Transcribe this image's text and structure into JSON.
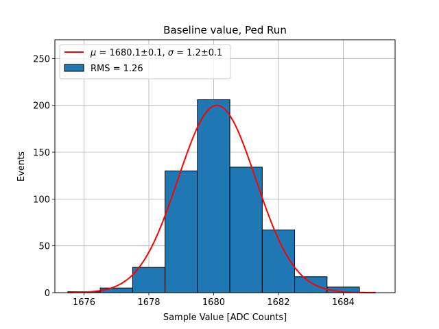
{
  "chart_data": {
    "type": "bar",
    "title": "Baseline value, Ped Run",
    "xlabel": "Sample Value [ADC Counts]",
    "ylabel": "Events",
    "xlim": [
      1675.1,
      1685.6
    ],
    "ylim": [
      0,
      270
    ],
    "xticks": [
      "1676",
      "1678",
      "1680",
      "1682",
      "1684"
    ],
    "yticks": [
      "0",
      "50",
      "100",
      "150",
      "200",
      "250"
    ],
    "grid": true,
    "legend_position": "top-left",
    "histogram": {
      "name": "RMS = 1.26",
      "color": "#1f77b4",
      "edge_color": "#000000",
      "bin_edges": [
        1675.5,
        1676.5,
        1677.5,
        1678.5,
        1679.5,
        1680.5,
        1681.5,
        1682.5,
        1683.5,
        1684.5
      ],
      "counts": [
        1,
        5,
        27,
        130,
        206,
        134,
        67,
        17,
        6
      ]
    },
    "fit": {
      "name": "$\\mu=1680.1\\pm0.1$, $\\sigma=1.2\\pm0.1$",
      "display_mu": "μ",
      "display_mu_text": " = 1680.1±0.1, ",
      "display_sigma": "σ",
      "display_sigma_text": " = 1.2±0.1",
      "color": "#ff0000",
      "mu": 1680.1,
      "sigma": 1.2,
      "amplitude": 200,
      "x_range": [
        1675.5,
        1685.0
      ]
    }
  }
}
